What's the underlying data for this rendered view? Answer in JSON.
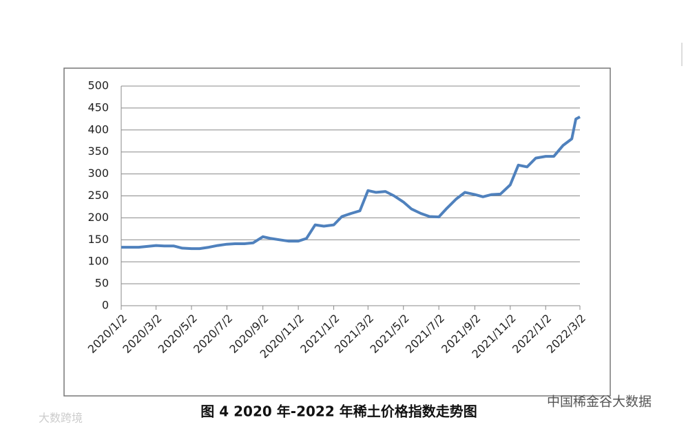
{
  "chart_data": {
    "type": "line",
    "caption": "图 4   2020 年-2022 年稀土价格指数走势图",
    "x": [
      "2020/1/2",
      "2020/1/16",
      "2020/2/1",
      "2020/2/16",
      "2020/3/2",
      "2020/3/16",
      "2020/4/1",
      "2020/4/16",
      "2020/5/2",
      "2020/5/16",
      "2020/6/1",
      "2020/6/16",
      "2020/7/2",
      "2020/7/16",
      "2020/8/1",
      "2020/8/16",
      "2020/9/2",
      "2020/9/16",
      "2020/10/1",
      "2020/10/16",
      "2020/11/2",
      "2020/11/16",
      "2020/12/1",
      "2020/12/16",
      "2021/1/2",
      "2021/1/16",
      "2021/2/1",
      "2021/2/16",
      "2021/3/2",
      "2021/3/16",
      "2021/4/1",
      "2021/4/16",
      "2021/5/2",
      "2021/5/16",
      "2021/6/1",
      "2021/6/16",
      "2021/7/2",
      "2021/7/16",
      "2021/8/1",
      "2021/8/16",
      "2021/9/2",
      "2021/9/16",
      "2021/10/1",
      "2021/10/16",
      "2021/11/2",
      "2021/11/16",
      "2021/12/1",
      "2021/12/16",
      "2022/1/2",
      "2022/1/16",
      "2022/2/1",
      "2022/2/16",
      "2022/2/23",
      "2022/3/2"
    ],
    "series": [
      {
        "color": "#4f81bd",
        "values": [
          133,
          133,
          133,
          135,
          137,
          136,
          136,
          131,
          130,
          130,
          133,
          137,
          140,
          141,
          141,
          143,
          157,
          153,
          150,
          147,
          147,
          153,
          184,
          181,
          184,
          203,
          210,
          216,
          262,
          258,
          260,
          250,
          236,
          220,
          210,
          203,
          202,
          222,
          243,
          258,
          253,
          248,
          253,
          254,
          275,
          320,
          316,
          336,
          340,
          340,
          365,
          380,
          425,
          430
        ]
      }
    ],
    "xlim": [
      "2020/1/2",
      "2022/3/2"
    ],
    "xticks": [
      "2020/1/2",
      "2020/3/2",
      "2020/5/2",
      "2020/7/2",
      "2020/9/2",
      "2020/11/2",
      "2021/1/2",
      "2021/3/2",
      "2021/5/2",
      "2021/7/2",
      "2021/9/2",
      "2021/11/2",
      "2022/1/2",
      "2022/3/2"
    ],
    "ylim": [
      0,
      500
    ],
    "yticks": [
      0,
      50,
      100,
      150,
      200,
      250,
      300,
      350,
      400,
      450,
      500
    ],
    "grid": true
  },
  "watermarks": [
    "中国稀金谷大数据",
    "大数跨境"
  ]
}
